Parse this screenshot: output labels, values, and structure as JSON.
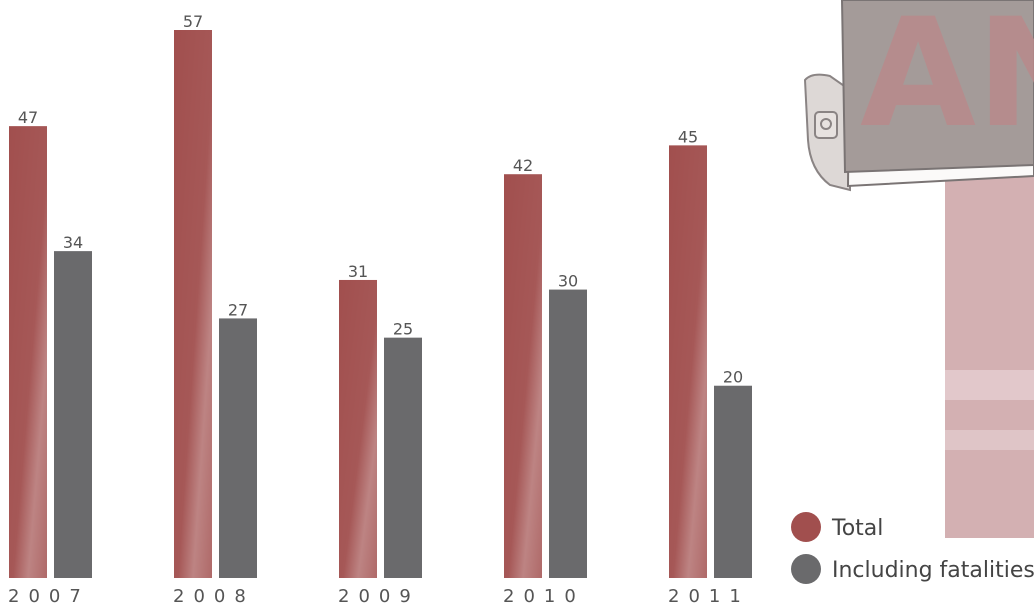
{
  "chart_data": {
    "type": "bar",
    "categories": [
      "2007",
      "2008",
      "2009",
      "2010",
      "2011"
    ],
    "series": [
      {
        "name": "Total",
        "color": "#a14f4e",
        "values": [
          47,
          57,
          31,
          42,
          45
        ]
      },
      {
        "name": "Including fatalities",
        "color": "#6a6a6c",
        "values": [
          34,
          27,
          25,
          30,
          20
        ]
      }
    ]
  },
  "background_sign": {
    "text": "AN"
  }
}
